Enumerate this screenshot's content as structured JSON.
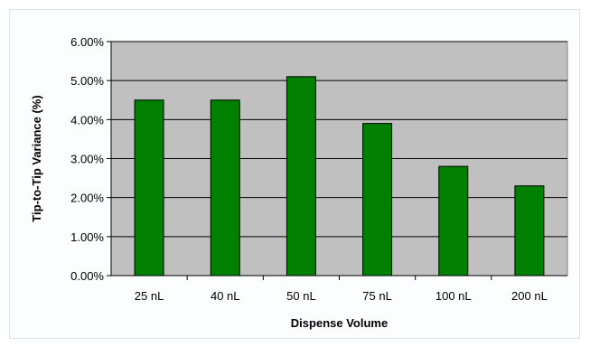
{
  "chart_data": {
    "type": "bar",
    "title": "",
    "xlabel": "Dispense Volume",
    "ylabel": "Tip-to-Tip Variance (%)",
    "categories": [
      "25 nL",
      "40 nL",
      "50 nL",
      "75 nL",
      "100 nL",
      "200 nL"
    ],
    "values": [
      4.5,
      4.5,
      5.1,
      3.9,
      2.8,
      2.3
    ],
    "ylim": [
      0,
      6
    ],
    "yticks": [
      "0.00%",
      "1.00%",
      "2.00%",
      "3.00%",
      "4.00%",
      "5.00%",
      "6.00%"
    ],
    "grid": true,
    "legend": "none",
    "colors": {
      "bar": "#007f00",
      "plot_background": "#c0c0c0",
      "gridline": "#000000"
    }
  }
}
